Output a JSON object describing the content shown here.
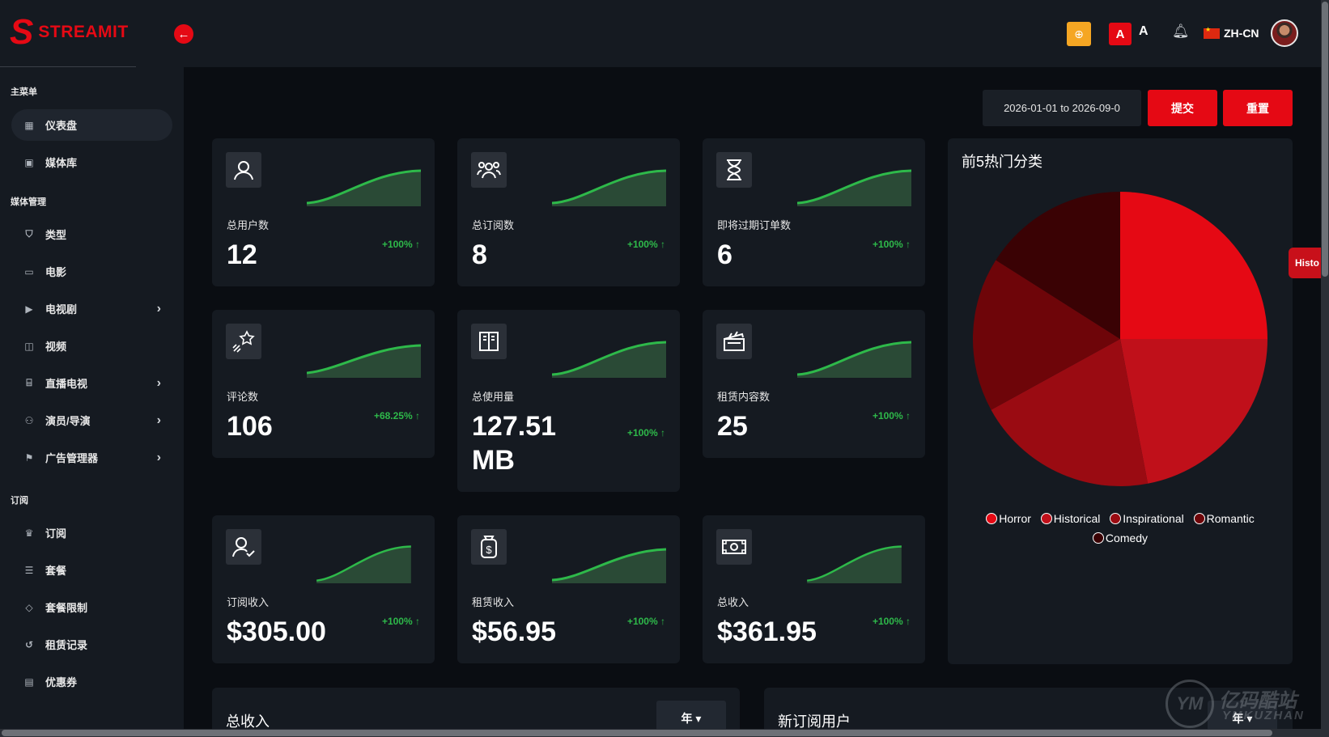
{
  "app": {
    "logo_letter": "S",
    "logo_text": "STREAMIT"
  },
  "header": {
    "back_icon": "arrow-left-icon",
    "lang": "ZH-CN",
    "font_a_large": "A",
    "font_a_small": "A"
  },
  "sidebar": {
    "sections": [
      {
        "title": "主菜单",
        "items": [
          {
            "label": "仪表盘",
            "icon": "dashboard-icon",
            "active": true
          },
          {
            "label": "媒体库",
            "icon": "image-icon"
          }
        ]
      },
      {
        "title": "媒体管理",
        "items": [
          {
            "label": "类型",
            "icon": "shield-icon"
          },
          {
            "label": "电影",
            "icon": "film-icon"
          },
          {
            "label": "电视剧",
            "icon": "tv-icon",
            "has_children": true
          },
          {
            "label": "视频",
            "icon": "video-icon"
          },
          {
            "label": "直播电视",
            "icon": "live-tv-icon",
            "has_children": true
          },
          {
            "label": "演员/导演",
            "icon": "users-icon",
            "has_children": true
          },
          {
            "label": "广告管理器",
            "icon": "flag-icon",
            "has_children": true
          }
        ]
      },
      {
        "title": "订阅",
        "items": [
          {
            "label": "订阅",
            "icon": "crown-icon"
          },
          {
            "label": "套餐",
            "icon": "list-icon"
          },
          {
            "label": "套餐限制",
            "icon": "tag-icon"
          },
          {
            "label": "租赁记录",
            "icon": "history-icon"
          },
          {
            "label": "优惠券",
            "icon": "ticket-icon"
          }
        ]
      }
    ]
  },
  "filters": {
    "date_range": "2026-01-01 to 2026-09-0",
    "submit_label": "提交",
    "reset_label": "重置"
  },
  "cards": [
    {
      "label": "总用户数",
      "value": "12",
      "change": "+100%",
      "icon": "user-icon"
    },
    {
      "label": "总订阅数",
      "value": "8",
      "change": "+100%",
      "icon": "group-icon"
    },
    {
      "label": "即将过期订单数",
      "value": "6",
      "change": "+100%",
      "icon": "hourglass-icon"
    },
    {
      "label": "评论数",
      "value": "106",
      "change": "+68.25%",
      "icon": "star-icon"
    },
    {
      "label": "总使用量",
      "value": "127.51 MB",
      "change": "+100%",
      "icon": "book-icon"
    },
    {
      "label": "租赁内容数",
      "value": "25",
      "change": "+100%",
      "icon": "clapper-icon"
    },
    {
      "label": "订阅收入",
      "value": "$305.00",
      "change": "+100%",
      "icon": "user-check-icon"
    },
    {
      "label": "租赁收入",
      "value": "$56.95",
      "change": "+100%",
      "icon": "money-bag-icon"
    },
    {
      "label": "总收入",
      "value": "$361.95",
      "change": "+100%",
      "icon": "banknote-icon"
    }
  ],
  "chart_data": {
    "type": "pie",
    "title": "前5热门分类",
    "categories": [
      "Horror",
      "Historical",
      "Inspirational",
      "Romantic",
      "Comedy"
    ],
    "values": [
      25,
      22,
      20,
      17,
      16
    ],
    "colors": [
      "#e50914",
      "#c0101a",
      "#9a0b12",
      "#6e0509",
      "#3a0204"
    ],
    "legend_position": "bottom"
  },
  "bottom": {
    "revenue_title": "总收入",
    "new_subs_title": "新订阅用户",
    "year_label": "年"
  },
  "history_tab": "Histo",
  "watermark": {
    "cn": "亿码酷站",
    "en": "YMKUZHAN",
    "mark": "YM"
  }
}
